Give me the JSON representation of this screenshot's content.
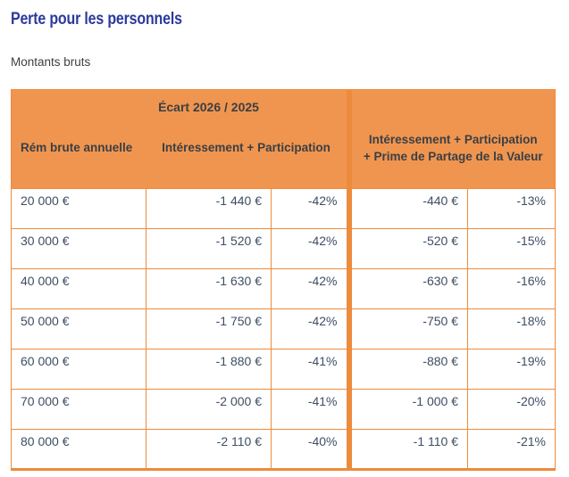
{
  "page": {
    "title": "Perte pour les personnels",
    "subtitle": "Montants bruts"
  },
  "colors": {
    "title_blue": "#2B3A9B",
    "table_orange_fill": "#F0954F",
    "table_orange_border": "#ED8B3D",
    "body_text": "#3E4E63",
    "header_text": "#3A3F45"
  },
  "table": {
    "header": {
      "ecart_label": "Écart 2026 / 2025",
      "col_rem": "Rém brute annuelle",
      "col_ip": "Intéressement + Participation",
      "col_ip_ppv_line1": "Intéressement + Participation",
      "col_ip_ppv_line2": "+ Prime de Partage de la Valeur"
    },
    "rows": [
      {
        "rem": "20 000 €",
        "ip_amount": "-1 440 €",
        "ip_pct": "-42%",
        "ppv_amount": "-440 €",
        "ppv_pct": "-13%"
      },
      {
        "rem": "30 000 €",
        "ip_amount": "-1 520 €",
        "ip_pct": "-42%",
        "ppv_amount": "-520 €",
        "ppv_pct": "-15%"
      },
      {
        "rem": "40 000 €",
        "ip_amount": "-1 630 €",
        "ip_pct": "-42%",
        "ppv_amount": "-630 €",
        "ppv_pct": "-16%"
      },
      {
        "rem": "50 000 €",
        "ip_amount": "-1 750 €",
        "ip_pct": "-42%",
        "ppv_amount": "-750 €",
        "ppv_pct": "-18%"
      },
      {
        "rem": "60 000 €",
        "ip_amount": "-1 880 €",
        "ip_pct": "-41%",
        "ppv_amount": "-880 €",
        "ppv_pct": "-19%"
      },
      {
        "rem": "70 000 €",
        "ip_amount": "-2 000 €",
        "ip_pct": "-41%",
        "ppv_amount": "-1 000 €",
        "ppv_pct": "-20%"
      },
      {
        "rem": "80 000 €",
        "ip_amount": "-2 110 €",
        "ip_pct": "-40%",
        "ppv_amount": "-1 110 €",
        "ppv_pct": "-21%"
      }
    ]
  }
}
